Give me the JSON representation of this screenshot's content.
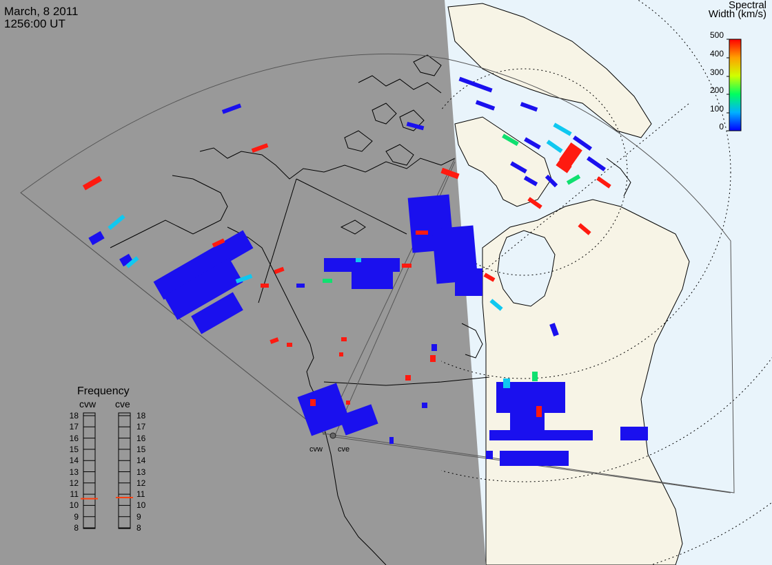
{
  "header": {
    "date": "March, 8 2011",
    "time": "1256:00 UT"
  },
  "colorbar": {
    "title_line1": "Spectral",
    "title_line2": "Width (km/s)",
    "ticks": [
      "500",
      "400",
      "300",
      "200",
      "100",
      "0"
    ]
  },
  "frequency_panel": {
    "title": "Frequency",
    "radars": [
      "cvw",
      "cve"
    ],
    "ticks": [
      "18",
      "17",
      "16",
      "15",
      "14",
      "13",
      "12",
      "11",
      "10",
      "9",
      "8"
    ],
    "cvw_value_mhz": 10.6,
    "cve_value_mhz": 10.7
  },
  "radar_sites": {
    "west": "cvw",
    "east": "cve"
  },
  "colors": {
    "night_shading": "#999999",
    "day_land": "#f7f4e6",
    "day_ocean": "#e9f4fb",
    "coastline": "#000000",
    "fov_outline": "#444444",
    "scatter_low": "#1a10ee",
    "scatter_high": "#ff1a10",
    "freq_marker": "#ff4010"
  },
  "scatter_colorscale": [
    "#0000ff",
    "#00c0ff",
    "#00ff80",
    "#ffff00",
    "#ffa000",
    "#ff0000"
  ]
}
